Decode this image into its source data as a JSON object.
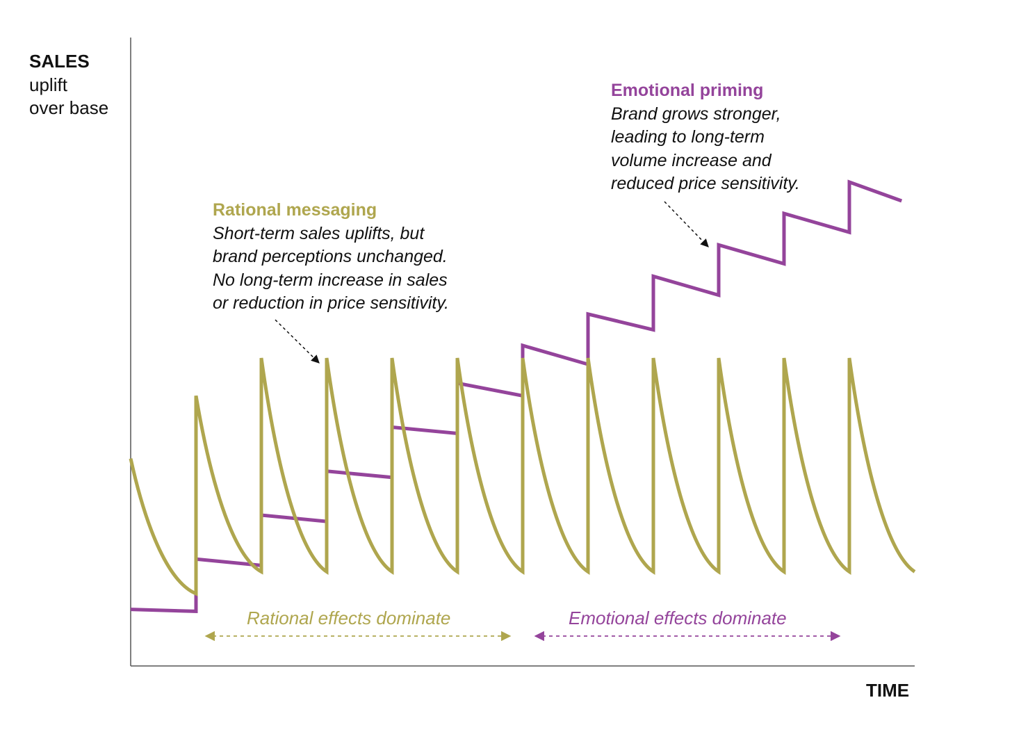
{
  "colors": {
    "rational": "#afa64e",
    "emotional": "#94449b",
    "axis": "#555555",
    "text": "#111111"
  },
  "axes": {
    "y_title": "SALES",
    "y_sub1": "uplift",
    "y_sub2": "over base",
    "x_title": "TIME"
  },
  "annotations": {
    "rational": {
      "heading": "Rational messaging",
      "lines": [
        "Short-term sales uplifts, but",
        "brand perceptions unchanged.",
        "No long-term increase in sales",
        "or reduction in price sensitivity."
      ]
    },
    "emotional": {
      "heading": "Emotional priming",
      "lines": [
        "Brand grows stronger,",
        "leading to long-term",
        "volume increase and",
        "reduced price sensitivity."
      ]
    }
  },
  "phases": {
    "rational": "Rational effects dominate",
    "emotional": "Emotional effects dominate"
  },
  "chart_data": {
    "type": "line",
    "xlabel": "TIME",
    "ylabel": "SALES uplift over base",
    "xlim": [
      0,
      12
    ],
    "ylim": [
      0,
      100
    ],
    "grid": false,
    "series": [
      {
        "name": "Rational messaging",
        "key": "rational",
        "shape": "sawtooth-decay",
        "start_value": 33,
        "pulse_times": [
          1,
          2,
          3,
          4,
          5,
          6,
          7,
          8,
          9,
          10,
          11
        ],
        "peaks": [
          43,
          49,
          49,
          49,
          49,
          49,
          49,
          49,
          49,
          49,
          49
        ],
        "troughs": [
          11.5,
          15,
          15,
          15,
          15,
          15,
          15,
          15,
          15,
          15,
          15
        ],
        "end_value": 15
      },
      {
        "name": "Emotional priming",
        "key": "emotional",
        "shape": "staircase",
        "start_value": 9,
        "step_times": [
          1,
          2,
          3,
          4,
          5,
          6,
          7,
          8,
          9,
          10,
          11
        ],
        "step_tops": [
          17,
          24,
          31,
          38,
          45,
          51,
          56,
          62,
          67,
          72,
          77
        ],
        "segment_ends": [
          8.7,
          16,
          23,
          30,
          37,
          43,
          48,
          53.5,
          59,
          64,
          69,
          74
        ]
      }
    ]
  }
}
